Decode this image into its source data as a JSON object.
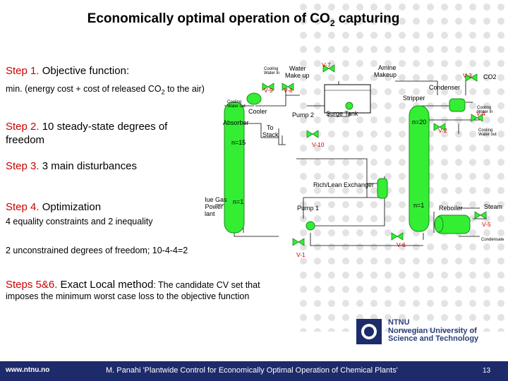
{
  "slide": {
    "title_main": "Economically optimal operation of CO",
    "title_sub": "2",
    "title_end": " capturing"
  },
  "steps": [
    {
      "label": "Step 1.",
      "text": " Objective function:"
    },
    {
      "label": "Step 2.",
      "text": " 10 steady-state degrees of",
      "text2": "freedom"
    },
    {
      "label": "Step 3.",
      "text": " 3 main disturbances"
    },
    {
      "label": "Step 4.",
      "text": " Optimization"
    },
    {
      "label": "Steps 5&6.",
      "text": " Exact Local method",
      "note": ": The candidate CV set that",
      "note2": "imposes the minimum worst case loss to the objective function"
    }
  ],
  "details": {
    "objective": "min. (energy cost + cost of released CO",
    "objective_sub": "2",
    "objective_end": " to the air)",
    "constraints": "4 equality constraints and 2 inequality",
    "dof": "2 unconstrained degrees of freedom; 10-4-4=2"
  },
  "diagram": {
    "labels": {
      "water_makeup": "Water\nMake up",
      "amine_makeup": "Amine\nMakeup",
      "cooling_water_in": "Cooling\nWater in",
      "cooling_water_out": "Cooling\nWater out",
      "cooler": "Cooler",
      "pump2": "Pump 2",
      "surge_tank": "Surge Tank",
      "absorber": "Absorber",
      "to_stack": "To\nStack",
      "stripper": "Stripper",
      "condenser": "Condenser",
      "co2": "CO2",
      "rich_lean": "Rich/Lean Exchanger",
      "flue_gas": "Flue Gas\nfrom Power\nPlant",
      "pump1": "Pump 1",
      "reboiler": "Reboiler",
      "steam": "Steam",
      "condensate": "Condensate",
      "n15": "n=15",
      "n1_abs": "n=1",
      "n20": "n=20",
      "n1_str": "n=1"
    },
    "valves": [
      "V-7",
      "V-9",
      "V-8",
      "V-3",
      "V-4",
      "V-2",
      "V-10",
      "V-5",
      "V-6",
      "V-1"
    ]
  },
  "branding": {
    "ntnu_line1": "NTNU",
    "ntnu_line2": "Norwegian University of",
    "ntnu_line3": "Science and Technology"
  },
  "footer": {
    "url": "www.ntnu.no",
    "citation": "M. Panahi 'Plantwide Control for Economically Optimal Operation of Chemical Plants'",
    "page_number": "13"
  },
  "colors": {
    "accent_red": "#cc0000",
    "column_green": "#33ee33",
    "footer_blue": "#1d2b6b"
  }
}
